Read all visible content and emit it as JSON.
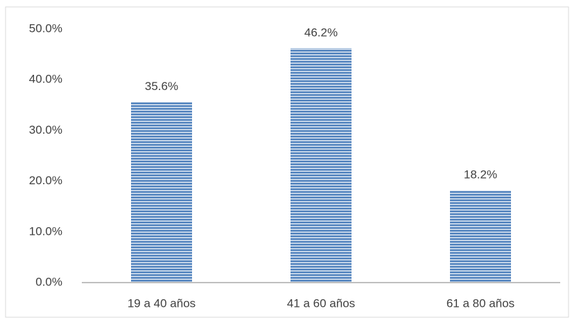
{
  "chart_data": {
    "type": "bar",
    "categories": [
      "19 a 40 años",
      "41 a 60 años",
      "61 a 80 años"
    ],
    "values": [
      35.6,
      46.2,
      18.2
    ],
    "value_labels": [
      "35.6%",
      "46.2%",
      "18.2%"
    ],
    "color": "#4f81bd",
    "ylim": [
      0,
      50
    ],
    "yticks": [
      {
        "value": 0,
        "label": "0.0%"
      },
      {
        "value": 10,
        "label": "10.0%"
      },
      {
        "value": 20,
        "label": "20.0%"
      },
      {
        "value": 30,
        "label": "30.0%"
      },
      {
        "value": 40,
        "label": "40.0%"
      },
      {
        "value": 50,
        "label": "50.0%"
      }
    ],
    "grid": false
  }
}
